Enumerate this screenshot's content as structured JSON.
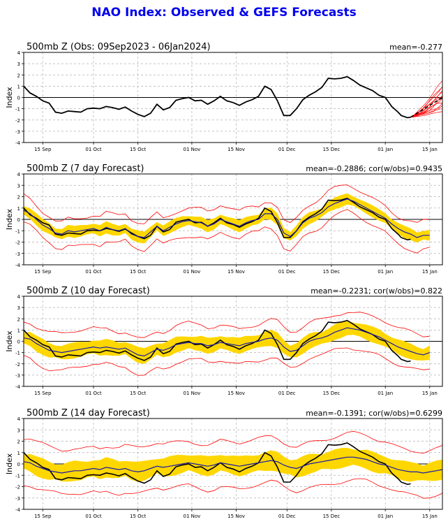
{
  "title": "NAO Index: Observed & GEFS Forecasts",
  "colors": {
    "title": "#0000ee",
    "observed": "#000000",
    "ensemble_member": "#ff0000",
    "ensemble_mean": "#1a1aa6",
    "spread": "#ffd700"
  },
  "chart_data": [
    {
      "type": "line",
      "title": "500mb Z (Obs: 09Sep2023 - 06Jan2024)",
      "stat": "mean=-0.277",
      "ylabel": "Index",
      "ylim": [
        -4,
        4
      ],
      "yticks": [
        -4,
        -3,
        -2,
        -1,
        0,
        1,
        2,
        3,
        4
      ],
      "xlim": [
        0,
        132
      ],
      "xticks": [
        {
          "x": 6,
          "label": "15 Sep"
        },
        {
          "x": 22,
          "label": "01 Oct"
        },
        {
          "x": 36,
          "label": "15 Oct"
        },
        {
          "x": 53,
          "label": "01 Nov"
        },
        {
          "x": 67,
          "label": "15 Nov"
        },
        {
          "x": 83,
          "label": "01 Dec"
        },
        {
          "x": 97,
          "label": "15 Dec"
        },
        {
          "x": 114,
          "label": "01 Jan"
        },
        {
          "x": 128,
          "label": "15 Jan"
        }
      ],
      "grid": true,
      "observed": [
        [
          0,
          1.0
        ],
        [
          2,
          0.4
        ],
        [
          4,
          0.1
        ],
        [
          6,
          -0.3
        ],
        [
          8,
          -0.5
        ],
        [
          10,
          -1.3
        ],
        [
          12,
          -1.4
        ],
        [
          14,
          -1.2
        ],
        [
          16,
          -1.25
        ],
        [
          18,
          -1.3
        ],
        [
          20,
          -1.0
        ],
        [
          22,
          -0.95
        ],
        [
          24,
          -1.0
        ],
        [
          26,
          -0.8
        ],
        [
          28,
          -0.9
        ],
        [
          30,
          -1.05
        ],
        [
          32,
          -0.85
        ],
        [
          34,
          -1.2
        ],
        [
          36,
          -1.5
        ],
        [
          38,
          -1.7
        ],
        [
          40,
          -1.4
        ],
        [
          42,
          -0.6
        ],
        [
          44,
          -1.1
        ],
        [
          46,
          -0.9
        ],
        [
          48,
          -0.25
        ],
        [
          50,
          -0.1
        ],
        [
          52,
          0.0
        ],
        [
          54,
          -0.3
        ],
        [
          56,
          -0.25
        ],
        [
          58,
          -0.6
        ],
        [
          60,
          -0.3
        ],
        [
          62,
          0.1
        ],
        [
          64,
          -0.3
        ],
        [
          66,
          -0.45
        ],
        [
          68,
          -0.7
        ],
        [
          70,
          -0.4
        ],
        [
          72,
          -0.2
        ],
        [
          74,
          0.1
        ],
        [
          76,
          1.0
        ],
        [
          78,
          0.7
        ],
        [
          80,
          -0.3
        ],
        [
          82,
          -1.6
        ],
        [
          84,
          -1.6
        ],
        [
          86,
          -1.0
        ],
        [
          88,
          -0.2
        ],
        [
          90,
          0.2
        ],
        [
          92,
          0.5
        ],
        [
          94,
          0.9
        ],
        [
          96,
          1.7
        ],
        [
          98,
          1.65
        ],
        [
          100,
          1.7
        ],
        [
          102,
          1.85
        ],
        [
          104,
          1.5
        ],
        [
          106,
          1.1
        ],
        [
          108,
          0.85
        ],
        [
          110,
          0.6
        ],
        [
          112,
          0.2
        ],
        [
          114,
          0.0
        ],
        [
          116,
          -0.8
        ],
        [
          118,
          -1.3
        ],
        [
          119,
          -1.6
        ],
        [
          121,
          -1.8
        ],
        [
          122,
          -1.75
        ]
      ],
      "members": [
        {
          "end": 1.5,
          "amp": 0.3
        },
        {
          "end": 1.2,
          "amp": 0.4
        },
        {
          "end": 0.9,
          "amp": 0.2
        },
        {
          "end": 0.6,
          "amp": 0.3
        },
        {
          "end": 0.4,
          "amp": 0.5
        },
        {
          "end": 0.2,
          "amp": 0.3
        },
        {
          "end": 0.0,
          "amp": 0.2
        },
        {
          "end": -0.2,
          "amp": 0.4
        },
        {
          "end": -0.4,
          "amp": 0.3
        },
        {
          "end": -0.6,
          "amp": 0.2
        },
        {
          "end": -0.8,
          "amp": 0.3
        },
        {
          "end": -1.0,
          "amp": 0.2
        },
        {
          "end": -1.2,
          "amp": 0.1
        }
      ],
      "forecast_start": [
        122,
        -1.75
      ],
      "forecast_end_x": 132,
      "ensemble_mean_end": 0.0
    },
    {
      "type": "line",
      "title": "500mb Z (7 day Forecast)",
      "stat": "mean=-0.2886; cor(w/obs)=0.9435",
      "ylabel": "Index",
      "ylim": [
        -4,
        4
      ],
      "yticks": [
        -4,
        -3,
        -2,
        -1,
        0,
        1,
        2,
        3,
        4
      ],
      "xlim": [
        0,
        132
      ],
      "xticks": [
        {
          "x": 6,
          "label": "15 Sep"
        },
        {
          "x": 22,
          "label": "01 Oct"
        },
        {
          "x": 36,
          "label": "15 Oct"
        },
        {
          "x": 53,
          "label": "01 Nov"
        },
        {
          "x": 67,
          "label": "15 Nov"
        },
        {
          "x": 83,
          "label": "01 Dec"
        },
        {
          "x": 97,
          "label": "15 Dec"
        },
        {
          "x": 114,
          "label": "01 Jan"
        },
        {
          "x": 128,
          "label": "15 Jan"
        }
      ],
      "grid": true,
      "forecast_x": [
        0,
        2,
        4,
        6,
        8,
        10,
        12,
        14,
        16,
        18,
        20,
        22,
        24,
        26,
        28,
        30,
        32,
        34,
        36,
        38,
        40,
        42,
        44,
        46,
        48,
        50,
        52,
        54,
        56,
        58,
        60,
        62,
        64,
        66,
        68,
        70,
        72,
        74,
        76,
        78,
        80,
        82,
        84,
        86,
        88,
        90,
        92,
        94,
        96,
        98,
        100,
        102,
        104,
        106,
        108,
        110,
        112,
        114,
        116,
        118,
        120,
        122,
        124,
        126,
        128
      ],
      "forecast_mean": [
        0.8,
        0.5,
        0.0,
        -0.5,
        -0.8,
        -1.2,
        -1.3,
        -1.0,
        -1.1,
        -1.0,
        -0.9,
        -0.8,
        -1.0,
        -0.7,
        -0.9,
        -1.0,
        -0.8,
        -1.3,
        -1.5,
        -1.6,
        -1.1,
        -0.6,
        -1.0,
        -0.7,
        -0.4,
        -0.2,
        -0.1,
        -0.2,
        -0.3,
        -0.6,
        -0.4,
        0.0,
        -0.2,
        -0.4,
        -0.6,
        -0.3,
        -0.1,
        0.0,
        0.5,
        0.5,
        0.0,
        -1.2,
        -1.5,
        -1.0,
        -0.3,
        0.1,
        0.3,
        0.6,
        1.1,
        1.4,
        1.6,
        1.8,
        1.6,
        1.3,
        1.0,
        0.7,
        0.4,
        0.1,
        -0.4,
        -0.8,
        -1.1,
        -1.3,
        -1.6,
        -1.4,
        -1.4
      ],
      "spread": 0.45,
      "extremes_width": 1.2
    },
    {
      "type": "line",
      "title": "500mb Z (10 day Forecast)",
      "stat": "mean=-0.2231; cor(w/obs)=0.822",
      "ylabel": "Index",
      "ylim": [
        -4,
        4
      ],
      "yticks": [
        -4,
        -3,
        -2,
        -1,
        0,
        1,
        2,
        3,
        4
      ],
      "xlim": [
        0,
        132
      ],
      "xticks": [
        {
          "x": 6,
          "label": "15 Sep"
        },
        {
          "x": 22,
          "label": "01 Oct"
        },
        {
          "x": 36,
          "label": "15 Oct"
        },
        {
          "x": 53,
          "label": "01 Nov"
        },
        {
          "x": 67,
          "label": "15 Nov"
        },
        {
          "x": 83,
          "label": "01 Dec"
        },
        {
          "x": 97,
          "label": "15 Dec"
        },
        {
          "x": 114,
          "label": "01 Jan"
        },
        {
          "x": 128,
          "label": "15 Jan"
        }
      ],
      "grid": true,
      "forecast_x": [
        0,
        2,
        4,
        6,
        8,
        10,
        12,
        14,
        16,
        18,
        20,
        22,
        24,
        26,
        28,
        30,
        32,
        34,
        36,
        38,
        40,
        42,
        44,
        46,
        48,
        50,
        52,
        54,
        56,
        58,
        60,
        62,
        64,
        66,
        68,
        70,
        72,
        74,
        76,
        78,
        80,
        82,
        84,
        86,
        88,
        90,
        92,
        94,
        96,
        98,
        100,
        102,
        104,
        106,
        108,
        110,
        112,
        114,
        116,
        118,
        120,
        122,
        124,
        126,
        128
      ],
      "forecast_mean": [
        0.3,
        0.2,
        -0.2,
        -0.5,
        -0.8,
        -0.9,
        -1.0,
        -0.9,
        -0.8,
        -0.7,
        -0.6,
        -0.5,
        -0.6,
        -0.5,
        -0.6,
        -0.7,
        -0.6,
        -0.9,
        -1.2,
        -1.3,
        -1.0,
        -0.7,
        -0.8,
        -0.6,
        -0.3,
        -0.2,
        -0.1,
        -0.2,
        -0.2,
        -0.4,
        -0.3,
        -0.1,
        -0.2,
        -0.3,
        -0.4,
        -0.2,
        -0.1,
        0.0,
        0.2,
        0.3,
        0.1,
        -0.5,
        -0.9,
        -0.8,
        -0.4,
        0.0,
        0.2,
        0.3,
        0.5,
        0.8,
        1.0,
        1.2,
        1.1,
        1.0,
        0.8,
        0.6,
        0.4,
        0.1,
        -0.2,
        -0.5,
        -0.7,
        -0.9,
        -1.1,
        -1.2,
        -1.0
      ],
      "spread": 0.6,
      "extremes_width": 1.6
    },
    {
      "type": "line",
      "title": "500mb Z (14 day Forecast)",
      "stat": "mean=-0.1391; cor(w/obs)=0.6299",
      "ylabel": "Index",
      "ylim": [
        -4,
        4
      ],
      "yticks": [
        -4,
        -3,
        -2,
        -1,
        0,
        1,
        2,
        3,
        4
      ],
      "xlim": [
        0,
        132
      ],
      "xticks": [
        {
          "x": 6,
          "label": "15 Sep"
        },
        {
          "x": 22,
          "label": "01 Oct"
        },
        {
          "x": 36,
          "label": "15 Oct"
        },
        {
          "x": 53,
          "label": "01 Nov"
        },
        {
          "x": 67,
          "label": "15 Nov"
        },
        {
          "x": 83,
          "label": "01 Dec"
        },
        {
          "x": 97,
          "label": "15 Dec"
        },
        {
          "x": 114,
          "label": "01 Jan"
        },
        {
          "x": 128,
          "label": "15 Jan"
        }
      ],
      "grid": true,
      "forecast_x": [
        0,
        2,
        4,
        6,
        8,
        10,
        12,
        14,
        16,
        18,
        20,
        22,
        24,
        26,
        28,
        30,
        32,
        34,
        36,
        38,
        40,
        42,
        44,
        46,
        48,
        50,
        52,
        54,
        56,
        58,
        60,
        62,
        64,
        66,
        68,
        70,
        72,
        74,
        76,
        78,
        80,
        82,
        84,
        86,
        88,
        90,
        92,
        94,
        96,
        98,
        100,
        102,
        104,
        106,
        108,
        110,
        112,
        114,
        116,
        118,
        120,
        122,
        124,
        126,
        128,
        130,
        132
      ],
      "forecast_mean": [
        0.2,
        0.1,
        -0.2,
        -0.4,
        -0.6,
        -0.7,
        -0.8,
        -0.7,
        -0.6,
        -0.6,
        -0.5,
        -0.4,
        -0.5,
        -0.3,
        -0.4,
        -0.5,
        -0.4,
        -0.6,
        -0.7,
        -0.6,
        -0.4,
        -0.2,
        -0.3,
        -0.2,
        -0.1,
        0.0,
        0.1,
        0.0,
        -0.1,
        -0.2,
        -0.1,
        0.1,
        0.0,
        -0.1,
        -0.2,
        -0.1,
        0.0,
        0.1,
        0.2,
        0.3,
        0.2,
        -0.1,
        -0.3,
        -0.4,
        -0.2,
        0.0,
        0.1,
        0.2,
        0.3,
        0.4,
        0.5,
        0.6,
        0.6,
        0.5,
        0.4,
        0.2,
        0.0,
        -0.1,
        -0.3,
        -0.5,
        -0.6,
        -0.7,
        -0.7,
        -0.8,
        -0.7,
        -0.6,
        -0.5
      ],
      "spread": 0.75,
      "extremes_width": 2.0
    }
  ]
}
